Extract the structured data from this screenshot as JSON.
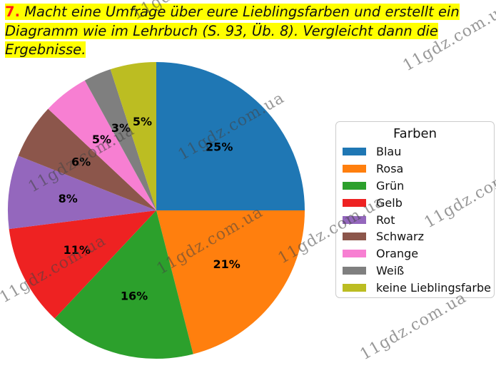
{
  "task": {
    "number": "7.",
    "text": "Macht eine Umfrage über eure Lieblingsfarben und erstellt ein Diagramm wie im Lehrbuch (S. 93, Üb. 8). Vergleicht dann die Ergebnisse"
  },
  "chart_data": {
    "type": "pie",
    "title": "",
    "legend_title": "Farben",
    "legend_position": "right",
    "start_angle_deg": 90,
    "direction": "clockwise",
    "categories": [
      "Blau",
      "Rosa",
      "Grün",
      "Gelb",
      "Rot",
      "Schwarz",
      "Orange",
      "Weiß",
      "keine Lieblingsfarbe"
    ],
    "values": [
      25,
      21,
      16,
      11,
      8,
      6,
      5,
      3,
      5
    ],
    "labels": [
      "25%",
      "21%",
      "16%",
      "11%",
      "8%",
      "6%",
      "5%",
      "3%",
      "5%"
    ],
    "colors": [
      "#1f77b4",
      "#ff7f0e",
      "#2ca02c",
      "#ee2222",
      "#9467bd",
      "#8c564b",
      "#f77fd2",
      "#7f7f7f",
      "#bcbd22"
    ]
  },
  "watermark": "11gdz.com.ua"
}
